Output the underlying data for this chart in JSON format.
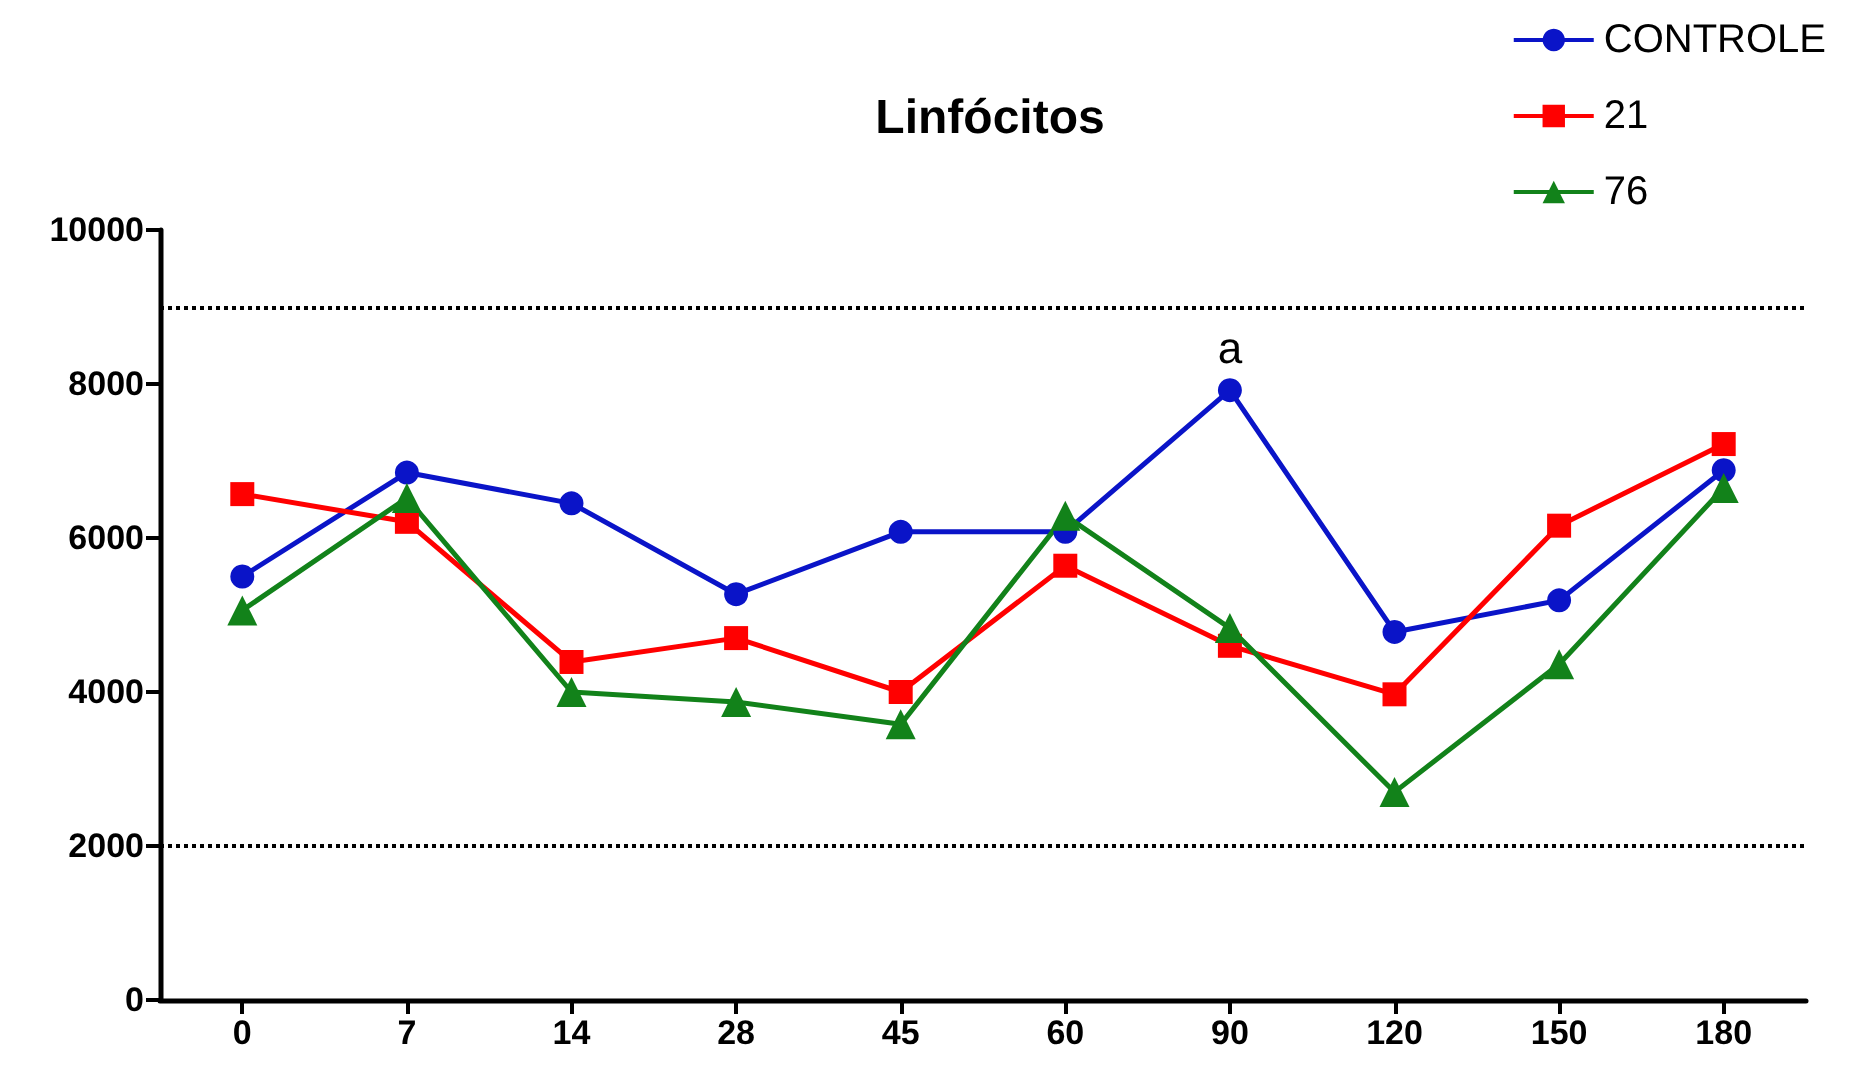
{
  "chart_data": {
    "type": "line",
    "title": "Linfócitos",
    "categories": [
      "0",
      "7",
      "14",
      "28",
      "45",
      "60",
      "90",
      "120",
      "150",
      "180"
    ],
    "series": [
      {
        "name": "CONTROLE",
        "color": "#0a14c8",
        "marker": "circle",
        "values": [
          5500,
          6850,
          6450,
          5270,
          6080,
          6080,
          7920,
          4780,
          5190,
          6880
        ]
      },
      {
        "name": "21",
        "color": "#ff0000",
        "marker": "square",
        "values": [
          6570,
          6210,
          4390,
          4700,
          4000,
          5640,
          4600,
          3970,
          6160,
          7220
        ]
      },
      {
        "name": "76",
        "color": "#12821a",
        "marker": "triangle",
        "values": [
          5060,
          6520,
          4000,
          3870,
          3580,
          6290,
          4830,
          2700,
          4360,
          6650
        ]
      }
    ],
    "ylim": [
      0,
      10000
    ],
    "yticks": [
      0,
      2000,
      4000,
      6000,
      8000,
      10000
    ],
    "ref_lines": [
      {
        "axis": "y",
        "value": 9000,
        "line_style": "dotted",
        "color": "#000000"
      },
      {
        "axis": "y",
        "value": 2000,
        "line_style": "dotted",
        "color": "#000000"
      }
    ],
    "annotations": [
      {
        "text": "a",
        "x": "90",
        "y": 7920
      }
    ],
    "grid": false,
    "legend": "top right"
  }
}
